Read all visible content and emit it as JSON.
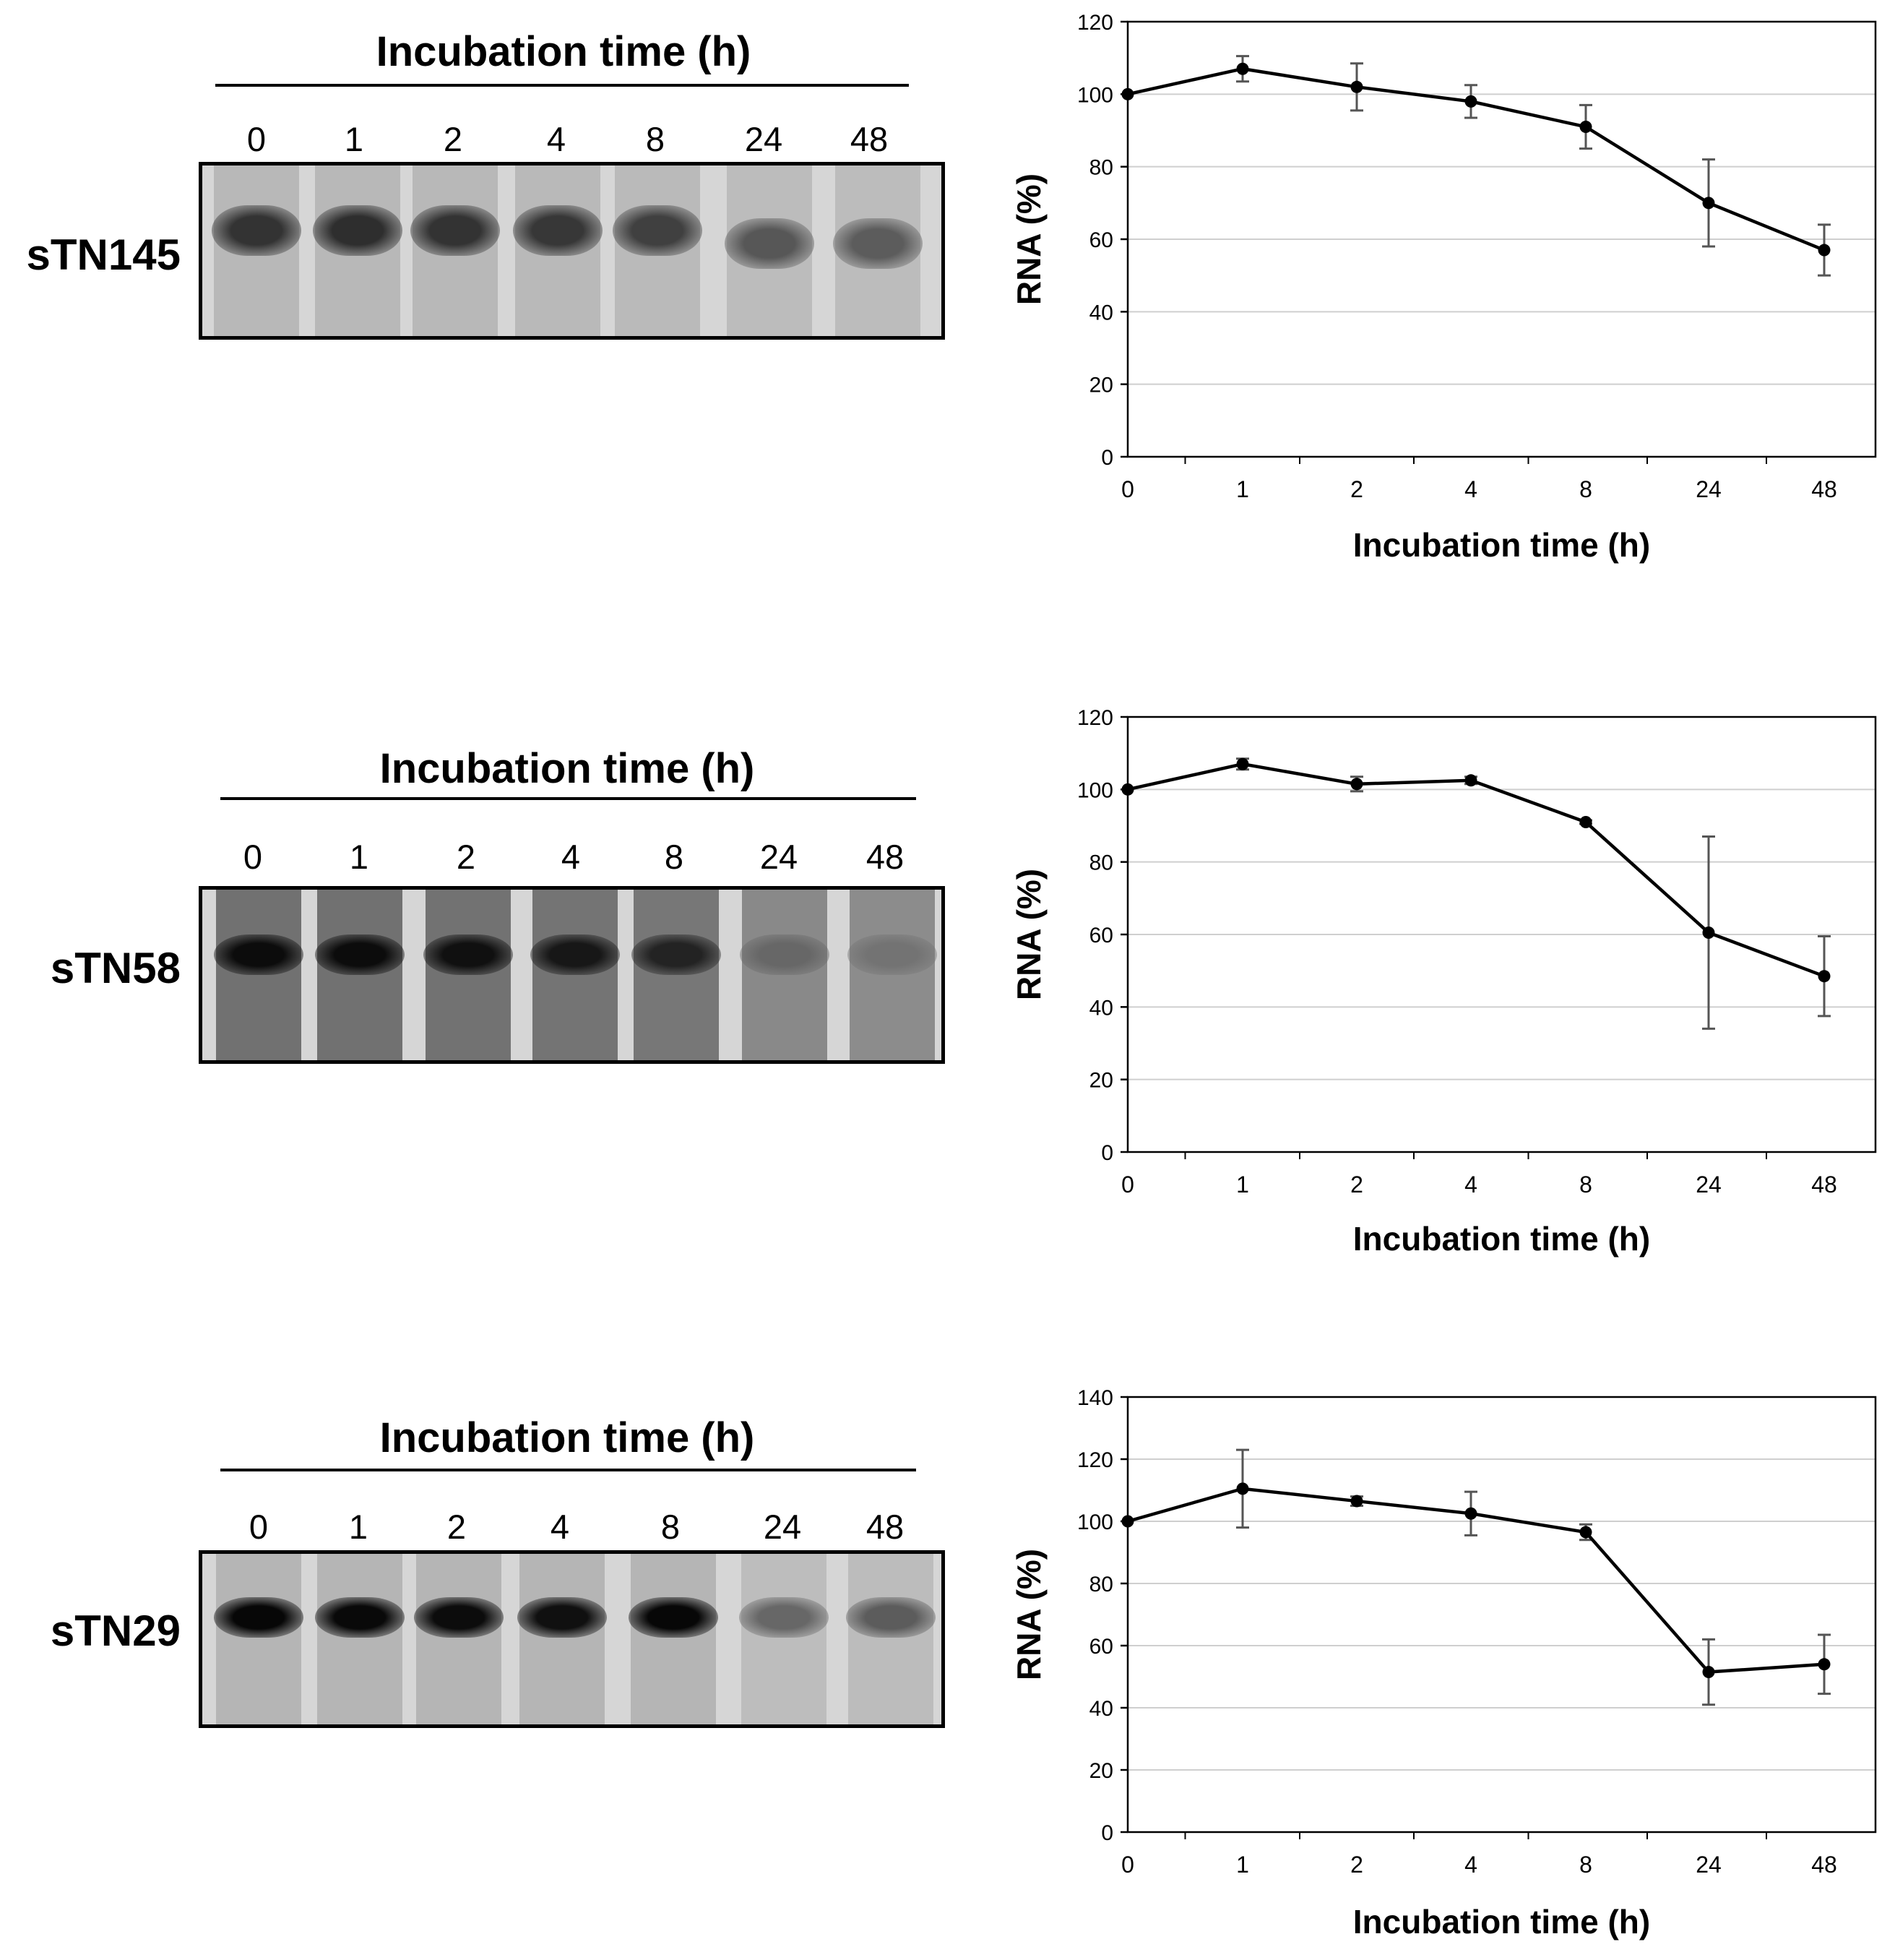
{
  "panels": [
    {
      "sample": "sTN145",
      "gel_title": "Incubation time (h)",
      "lanes": [
        "0",
        "1",
        "2",
        "4",
        "8",
        "24",
        "48"
      ],
      "band_intensity": [
        0.78,
        0.8,
        0.78,
        0.76,
        0.72,
        0.62,
        0.6
      ]
    },
    {
      "sample": "sTN58",
      "gel_title": "Incubation time (h)",
      "lanes": [
        "0",
        "1",
        "2",
        "4",
        "8",
        "24",
        "48"
      ],
      "band_intensity": [
        0.95,
        0.95,
        0.93,
        0.9,
        0.85,
        0.55,
        0.5
      ]
    },
    {
      "sample": "sTN29",
      "gel_title": "Incubation time (h)",
      "lanes": [
        "0",
        "1",
        "2",
        "4",
        "8",
        "24",
        "48"
      ],
      "band_intensity": [
        0.97,
        0.96,
        0.95,
        0.93,
        0.97,
        0.55,
        0.6
      ]
    }
  ],
  "chart_data": [
    {
      "type": "line",
      "categories": [
        "0",
        "1",
        "2",
        "4",
        "8",
        "24",
        "48"
      ],
      "series": [
        {
          "name": "sTN145",
          "values": [
            100,
            107,
            102,
            98,
            91,
            70,
            57
          ],
          "errors": [
            0,
            3.5,
            6.5,
            4.5,
            6,
            12,
            7
          ]
        }
      ],
      "xlabel": "Incubation  time (h)",
      "ylabel": "RNA  (%)",
      "ylim": [
        0,
        120
      ],
      "yticks": [
        0,
        20,
        40,
        60,
        80,
        100,
        120
      ],
      "grid": true
    },
    {
      "type": "line",
      "categories": [
        "0",
        "1",
        "2",
        "4",
        "8",
        "24",
        "48"
      ],
      "series": [
        {
          "name": "sTN58",
          "values": [
            100,
            107,
            101.5,
            102.5,
            91,
            60.5,
            48.5
          ],
          "errors": [
            0,
            1.5,
            2,
            1,
            0.5,
            26.5,
            11
          ]
        }
      ],
      "xlabel": "Incubation  time (h)",
      "ylabel": "RNA  (%)",
      "ylim": [
        0,
        120
      ],
      "yticks": [
        0,
        20,
        40,
        60,
        80,
        100,
        120
      ],
      "grid": true
    },
    {
      "type": "line",
      "categories": [
        "0",
        "1",
        "2",
        "4",
        "8",
        "24",
        "48"
      ],
      "series": [
        {
          "name": "sTN29",
          "values": [
            100,
            110.5,
            106.5,
            102.5,
            96.5,
            51.5,
            54
          ],
          "errors": [
            0,
            12.5,
            1.5,
            7,
            2.5,
            10.5,
            9.5
          ]
        }
      ],
      "xlabel": "Incubation  time (h)",
      "ylabel": "RNA  (%)",
      "ylim": [
        0,
        140
      ],
      "yticks": [
        0,
        20,
        40,
        60,
        80,
        100,
        120,
        140
      ],
      "grid": true
    }
  ]
}
